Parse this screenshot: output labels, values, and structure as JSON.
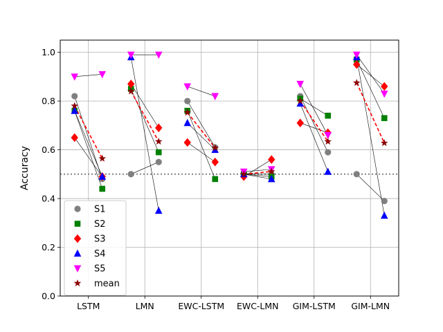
{
  "chart_data": {
    "type": "scatter",
    "ylabel": "Accuracy",
    "xlabel": "",
    "title": "",
    "categories": [
      "LSTM",
      "LMN",
      "EWC-LSTM",
      "EWC-LMN",
      "GIM-LSTM",
      "GIM-LMN"
    ],
    "ylim": [
      0.0,
      1.05
    ],
    "yticks": [
      "0.0",
      "0.2",
      "0.4",
      "0.6",
      "0.8",
      "1.0"
    ],
    "grid": true,
    "chance_level": 0.5,
    "legend_position": "lower-left",
    "pairing": "each marker pair is drawn at a left and right position within a category and joined by a thin line; mean pairs joined by a dashed red line",
    "series": [
      {
        "name": "S1",
        "marker": "circle",
        "color": "#808080",
        "left": [
          0.82,
          0.5,
          0.8,
          0.5,
          0.82,
          0.5
        ],
        "right": [
          0.48,
          0.55,
          0.61,
          0.5,
          0.59,
          0.39
        ]
      },
      {
        "name": "S2",
        "marker": "square",
        "color": "#008000",
        "left": [
          0.76,
          0.85,
          0.76,
          0.5,
          0.81,
          0.97
        ],
        "right": [
          0.44,
          0.59,
          0.48,
          0.49,
          0.74,
          0.73
        ]
      },
      {
        "name": "S3",
        "marker": "diamond",
        "color": "#ff0000",
        "left": [
          0.65,
          0.87,
          0.63,
          0.49,
          0.71,
          0.95
        ],
        "right": [
          0.49,
          0.69,
          0.55,
          0.56,
          0.67,
          0.86
        ]
      },
      {
        "name": "S4",
        "marker": "triangle-up",
        "color": "#0000ff",
        "left": [
          0.76,
          0.98,
          0.71,
          0.5,
          0.79,
          0.98
        ],
        "right": [
          0.49,
          0.35,
          0.6,
          0.48,
          0.51,
          0.33
        ]
      },
      {
        "name": "S5",
        "marker": "triangle-down",
        "color": "#ff00ff",
        "left": [
          0.9,
          0.99,
          0.86,
          0.51,
          0.87,
          0.99
        ],
        "right": [
          0.91,
          0.99,
          0.82,
          0.52,
          0.66,
          0.83
        ]
      },
      {
        "name": "mean",
        "marker": "star",
        "color": "#8b0000",
        "left": [
          0.78,
          0.84,
          0.753,
          0.5,
          0.8,
          0.875
        ],
        "right": [
          0.564,
          0.634,
          0.608,
          0.511,
          0.634,
          0.628
        ]
      }
    ]
  }
}
